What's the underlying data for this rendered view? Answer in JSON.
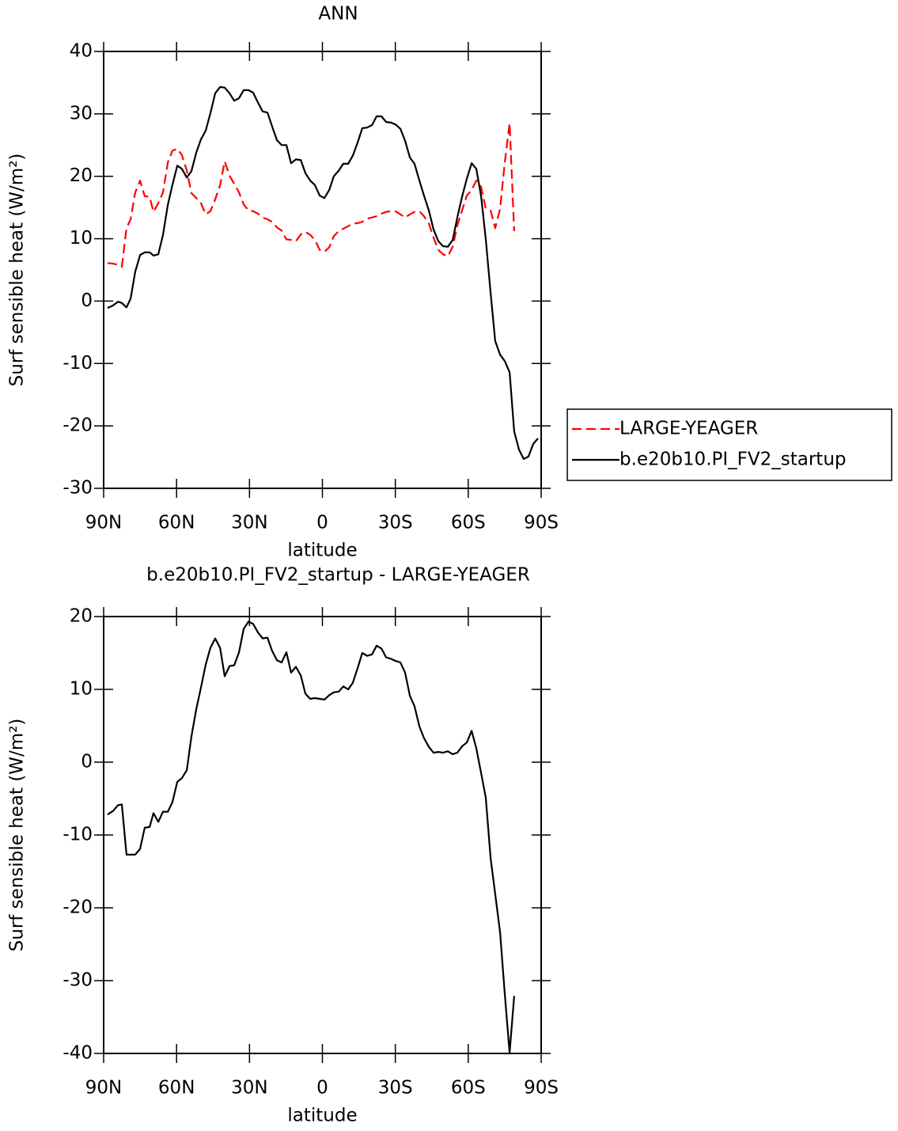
{
  "chart_data": [
    {
      "type": "line",
      "title": "ANN",
      "x_label": "latitude",
      "y_label": "Surf sensible heat (W/m²)",
      "x": [
        88.4,
        86.1,
        84.1,
        82.5,
        80.6,
        78.9,
        77.0,
        75.0,
        73.1,
        71.1,
        69.5,
        67.5,
        65.6,
        63.6,
        61.7,
        59.7,
        57.8,
        55.8,
        53.9,
        51.9,
        50.0,
        48.0,
        46.1,
        44.1,
        42.1,
        40.2,
        38.2,
        36.3,
        34.3,
        32.4,
        30.4,
        28.5,
        26.5,
        24.6,
        22.6,
        20.7,
        18.7,
        16.8,
        14.8,
        12.9,
        10.9,
        8.9,
        7.0,
        5.0,
        3.1,
        1.1,
        -0.8,
        -2.8,
        -4.7,
        -6.7,
        -8.6,
        -10.6,
        -12.5,
        -14.5,
        -16.4,
        -18.4,
        -20.4,
        -22.3,
        -24.3,
        -26.2,
        -28.2,
        -30.1,
        -32.1,
        -34.0,
        -36.0,
        -37.9,
        -39.9,
        -41.8,
        -43.8,
        -45.7,
        -47.7,
        -49.6,
        -51.6,
        -53.6,
        -55.5,
        -57.5,
        -59.4,
        -61.4,
        -63.3,
        -65.3,
        -67.2,
        -69.2,
        -71.1,
        -73.1,
        -75.0,
        -77.0,
        -78.9,
        -80.9,
        -82.8,
        -84.8,
        -86.7,
        -88.7
      ],
      "series": [
        {
          "name": "LARGE-YEAGER",
          "color": "#ff0000",
          "line_style": "dashed",
          "values": [
            6.1,
            6.0,
            5.8,
            5.5,
            11.7,
            13.1,
            17.4,
            19.3,
            16.8,
            16.7,
            14.3,
            15.7,
            17.4,
            22.2,
            24.1,
            24.4,
            23.4,
            20.9,
            17.3,
            16.5,
            15.7,
            13.9,
            14.4,
            16.3,
            18.6,
            22.4,
            20.1,
            18.8,
            17.4,
            15.5,
            14.5,
            14.4,
            14.0,
            13.4,
            13.1,
            12.7,
            11.8,
            11.3,
            9.9,
            9.8,
            9.6,
            10.7,
            11.1,
            10.6,
            9.8,
            8.2,
            7.9,
            8.6,
            10.4,
            11.2,
            11.6,
            12.0,
            12.4,
            12.5,
            12.7,
            13.2,
            13.4,
            13.6,
            14.0,
            14.3,
            14.4,
            14.4,
            13.9,
            13.4,
            13.9,
            14.3,
            14.4,
            13.6,
            12.4,
            10.2,
            8.2,
            7.5,
            7.2,
            8.7,
            12.1,
            14.6,
            16.9,
            17.8,
            19.3,
            18.3,
            14.8,
            14.5,
            11.7,
            14.8,
            22.1,
            28.5,
            11.2,
            null,
            null,
            null,
            null,
            null
          ]
        },
        {
          "name": "b.e20b10.PI_FV2_startup",
          "color": "#000000",
          "line_style": "solid",
          "values": [
            -1.1,
            -0.7,
            -0.1,
            -0.3,
            -1.0,
            0.4,
            4.7,
            7.4,
            7.8,
            7.8,
            7.3,
            7.5,
            10.6,
            15.4,
            18.6,
            21.7,
            21.2,
            19.8,
            20.8,
            23.8,
            25.9,
            27.3,
            30.1,
            33.3,
            34.3,
            34.2,
            33.3,
            32.1,
            32.5,
            33.8,
            33.8,
            33.4,
            31.8,
            30.4,
            30.2,
            28.0,
            25.8,
            25.0,
            25.0,
            22.1,
            22.7,
            22.6,
            20.5,
            19.3,
            18.6,
            16.9,
            16.5,
            17.8,
            20.0,
            20.9,
            22.0,
            22.0,
            23.3,
            25.4,
            27.7,
            27.8,
            28.2,
            29.6,
            29.6,
            28.7,
            28.6,
            28.3,
            27.6,
            25.7,
            23.0,
            22.0,
            19.3,
            16.9,
            14.5,
            11.5,
            9.6,
            8.8,
            8.7,
            9.8,
            13.4,
            16.8,
            19.6,
            22.1,
            21.2,
            16.8,
            9.9,
            1.3,
            -6.4,
            -8.6,
            -9.6,
            -11.4,
            -20.9,
            -23.8,
            -25.3,
            -24.9,
            -22.9,
            -22.0
          ]
        }
      ],
      "xlim": [
        90,
        -90
      ],
      "xticks": [
        {
          "value": 90,
          "label": "90N"
        },
        {
          "value": 60,
          "label": "60N"
        },
        {
          "value": 30,
          "label": "30N"
        },
        0,
        {
          "value": -30,
          "label": "30S"
        },
        {
          "value": -60,
          "label": "60S"
        },
        {
          "value": -90,
          "label": "90S"
        }
      ],
      "ylim": [
        -30,
        40
      ],
      "yticks": [
        -30,
        -20,
        -10,
        0,
        10,
        20,
        30,
        40
      ],
      "legend": "right"
    },
    {
      "type": "line",
      "title": "b.e20b10.PI_FV2_startup - LARGE-YEAGER",
      "x_label": "latitude",
      "y_label": "Surf sensible heat (W/m²)",
      "x": [
        88.4,
        86.1,
        84.1,
        82.5,
        80.6,
        78.9,
        77.0,
        75.0,
        73.1,
        71.1,
        69.5,
        67.5,
        65.6,
        63.6,
        61.7,
        59.7,
        57.8,
        55.8,
        53.9,
        51.9,
        50.0,
        48.0,
        46.1,
        44.1,
        42.1,
        40.2,
        38.2,
        36.3,
        34.3,
        32.4,
        30.4,
        28.5,
        26.5,
        24.6,
        22.6,
        20.7,
        18.7,
        16.8,
        14.8,
        12.9,
        10.9,
        8.9,
        7.0,
        5.0,
        3.1,
        1.1,
        -0.8,
        -2.8,
        -4.7,
        -6.7,
        -8.6,
        -10.6,
        -12.5,
        -14.5,
        -16.4,
        -18.4,
        -20.4,
        -22.3,
        -24.3,
        -26.2,
        -28.2,
        -30.1,
        -32.1,
        -34.0,
        -36.0,
        -37.9,
        -39.9,
        -41.8,
        -43.8,
        -45.7,
        -47.7,
        -49.6,
        -51.6,
        -53.6,
        -55.5,
        -57.5,
        -59.4,
        -61.4,
        -63.3,
        -65.3,
        -67.2,
        -69.2,
        -71.1,
        -73.1,
        -75.0,
        -77.0,
        -78.9,
        -80.9,
        -82.8,
        -84.8,
        -86.7,
        -88.7
      ],
      "series": [
        {
          "color": "#000000",
          "line_style": "solid",
          "values": [
            -7.2,
            -6.7,
            -5.9,
            -5.8,
            -12.7,
            -12.7,
            -12.7,
            -11.9,
            -9.0,
            -8.9,
            -7.0,
            -8.2,
            -6.8,
            -6.8,
            -5.5,
            -2.7,
            -2.2,
            -1.1,
            3.5,
            7.3,
            10.2,
            13.4,
            15.7,
            17.0,
            15.7,
            11.8,
            13.2,
            13.3,
            15.1,
            18.3,
            19.3,
            19.0,
            17.8,
            17.0,
            17.1,
            15.3,
            14.0,
            13.7,
            15.1,
            12.3,
            13.1,
            11.9,
            9.4,
            8.7,
            8.8,
            8.7,
            8.6,
            9.2,
            9.6,
            9.7,
            10.4,
            10.0,
            10.9,
            12.9,
            15.0,
            14.6,
            14.8,
            16.0,
            15.6,
            14.4,
            14.2,
            13.9,
            13.7,
            12.3,
            9.1,
            7.7,
            4.9,
            3.3,
            2.1,
            1.3,
            1.4,
            1.3,
            1.5,
            1.1,
            1.3,
            2.2,
            2.7,
            4.3,
            1.9,
            -1.5,
            -4.9,
            -13.2,
            -18.1,
            -23.4,
            -31.7,
            -39.9,
            -32.1,
            null,
            null,
            null,
            null,
            null
          ]
        }
      ],
      "xlim": [
        90,
        -90
      ],
      "xticks": [
        {
          "value": 90,
          "label": "90N"
        },
        {
          "value": 60,
          "label": "60N"
        },
        {
          "value": 30,
          "label": "30N"
        },
        0,
        {
          "value": -30,
          "label": "30S"
        },
        {
          "value": -60,
          "label": "60S"
        },
        {
          "value": -90,
          "label": "90S"
        }
      ],
      "ylim": [
        -40,
        20
      ],
      "yticks": [
        -40,
        -30,
        -20,
        -10,
        0,
        10,
        20
      ]
    }
  ]
}
